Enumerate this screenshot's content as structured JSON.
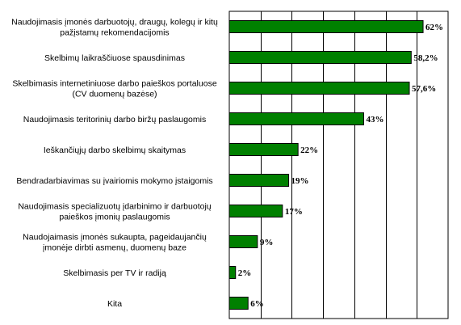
{
  "chart_data": {
    "type": "bar",
    "orientation": "horizontal",
    "title": "",
    "xlabel": "",
    "ylabel": "",
    "xlim": [
      0,
      70
    ],
    "grid": "vertical",
    "legend": "none",
    "bar_color": "#008000",
    "categories": [
      [
        "Naudojimasis įmonės darbuotojų, draugų, kolegų ir kitų",
        "pažįstamų rekomendacijomis"
      ],
      [
        "Skelbimų laikraščiuose spausdinimas"
      ],
      [
        "Skelbimasis internetiniuose darbo paieškos portaluose",
        "(CV duomenų bazėse)"
      ],
      [
        "Naudojimasis teritorinių darbo biržų paslaugomis"
      ],
      [
        "Ieškančiųjų darbo skelbimų skaitymas"
      ],
      [
        "Bendradarbiavimas su įvairiomis mokymo įstaigomis"
      ],
      [
        "Naudojimasis specializuotų įdarbinimo ir darbuotojų",
        "paieškos įmonių paslaugomis"
      ],
      [
        "Naudojaimasis įmonės sukaupta, pageidaujančių",
        "įmonėje dirbti asmenų, duomenų baze"
      ],
      [
        "Skelbimasis per TV ir radiją"
      ],
      [
        "Kita"
      ]
    ],
    "values": [
      62,
      58.2,
      57.6,
      43,
      22,
      19,
      17,
      9,
      2,
      6
    ],
    "value_labels": [
      "62%",
      "58,2%",
      "57,6%",
      "43%",
      "22%",
      "19%",
      "17%",
      "9%",
      "2%",
      "6%"
    ]
  }
}
